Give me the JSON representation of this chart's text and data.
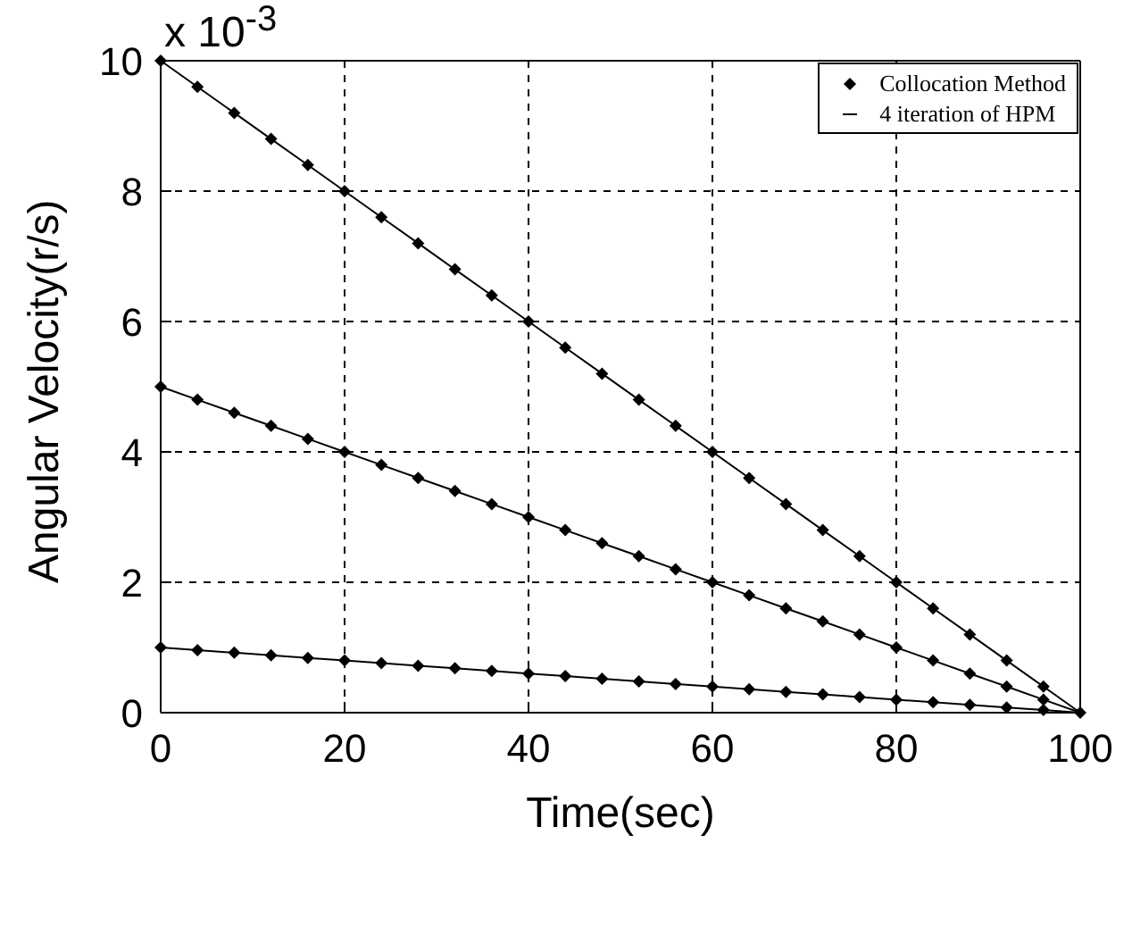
{
  "chart_data": {
    "type": "line",
    "xlabel": "Time(sec)",
    "ylabel": "Angular Velocity(r/s)",
    "annotations": [
      "x 10$^{-3}$"
    ],
    "x": [
      0,
      4,
      8,
      12,
      16,
      20,
      24,
      28,
      32,
      36,
      40,
      44,
      48,
      52,
      56,
      60,
      64,
      68,
      72,
      76,
      80,
      84,
      88,
      92,
      96,
      100
    ],
    "series": [
      {
        "name": "Collocation Method",
        "type": "scatter",
        "marker": "diamond",
        "color": "#000000",
        "values": [
          10,
          9.6,
          9.2,
          8.8,
          8.4,
          8,
          7.6,
          7.2,
          6.8,
          6.4,
          6,
          5.6,
          5.2,
          4.8,
          4.4,
          4,
          3.6,
          3.2,
          2.8,
          2.4,
          2,
          1.6,
          1.2,
          0.8,
          0.4,
          0
        ]
      },
      {
        "type": "scatter",
        "marker": "diamond",
        "color": "#000000",
        "values": [
          5,
          4.8,
          4.6,
          4.4,
          4.2,
          4,
          3.8,
          3.6,
          3.4,
          3.2,
          3,
          2.8,
          2.6,
          2.4,
          2.2,
          2,
          1.8,
          1.6,
          1.4,
          1.2,
          1,
          0.8,
          0.6,
          0.4,
          0.2,
          null
        ]
      },
      {
        "type": "scatter",
        "marker": "diamond",
        "color": "#000000",
        "values": [
          1,
          0.96,
          0.92,
          0.88,
          0.84,
          0.8,
          0.76,
          0.72,
          0.68,
          0.64,
          0.6,
          0.56,
          0.52,
          0.48,
          0.44,
          0.4,
          0.36,
          0.32,
          0.28,
          0.24,
          0.2,
          0.16,
          0.12,
          0.08,
          0.04,
          null
        ]
      },
      {
        "name": "4 iteration of HPM",
        "marker": "none",
        "color": "#000000",
        "values": [
          10,
          9.6,
          9.2,
          8.8,
          8.4,
          8,
          7.6,
          7.2,
          6.8,
          6.4,
          6,
          5.6,
          5.2,
          4.8,
          4.4,
          4,
          3.6,
          3.2,
          2.8,
          2.4,
          2,
          1.6,
          1.2,
          0.8,
          0.4,
          0
        ]
      },
      {
        "marker": "none",
        "color": "#000000",
        "values": [
          5,
          4.8,
          4.6,
          4.4,
          4.2,
          4,
          3.8,
          3.6,
          3.4,
          3.2,
          3,
          2.8,
          2.6,
          2.4,
          2.2,
          2,
          1.8,
          1.6,
          1.4,
          1.2,
          1,
          0.8,
          0.6,
          0.4,
          0.2,
          0
        ]
      },
      {
        "marker": "none",
        "color": "#000000",
        "values": [
          1,
          0.96,
          0.92,
          0.88,
          0.84,
          0.8,
          0.76,
          0.72,
          0.68,
          0.64,
          0.6,
          0.56,
          0.52,
          0.48,
          0.44,
          0.4,
          0.36,
          0.32,
          0.28,
          0.24,
          0.2,
          0.16,
          0.12,
          0.08,
          0.04,
          0
        ]
      }
    ],
    "xlim": [
      0,
      100
    ],
    "xticks": [
      0,
      20,
      40,
      60,
      80,
      100
    ],
    "ylim": [
      0,
      10
    ],
    "yticks": [
      0,
      2,
      4,
      6,
      8,
      10
    ],
    "grid": true,
    "legend": "top right",
    "line_style": "solid"
  }
}
